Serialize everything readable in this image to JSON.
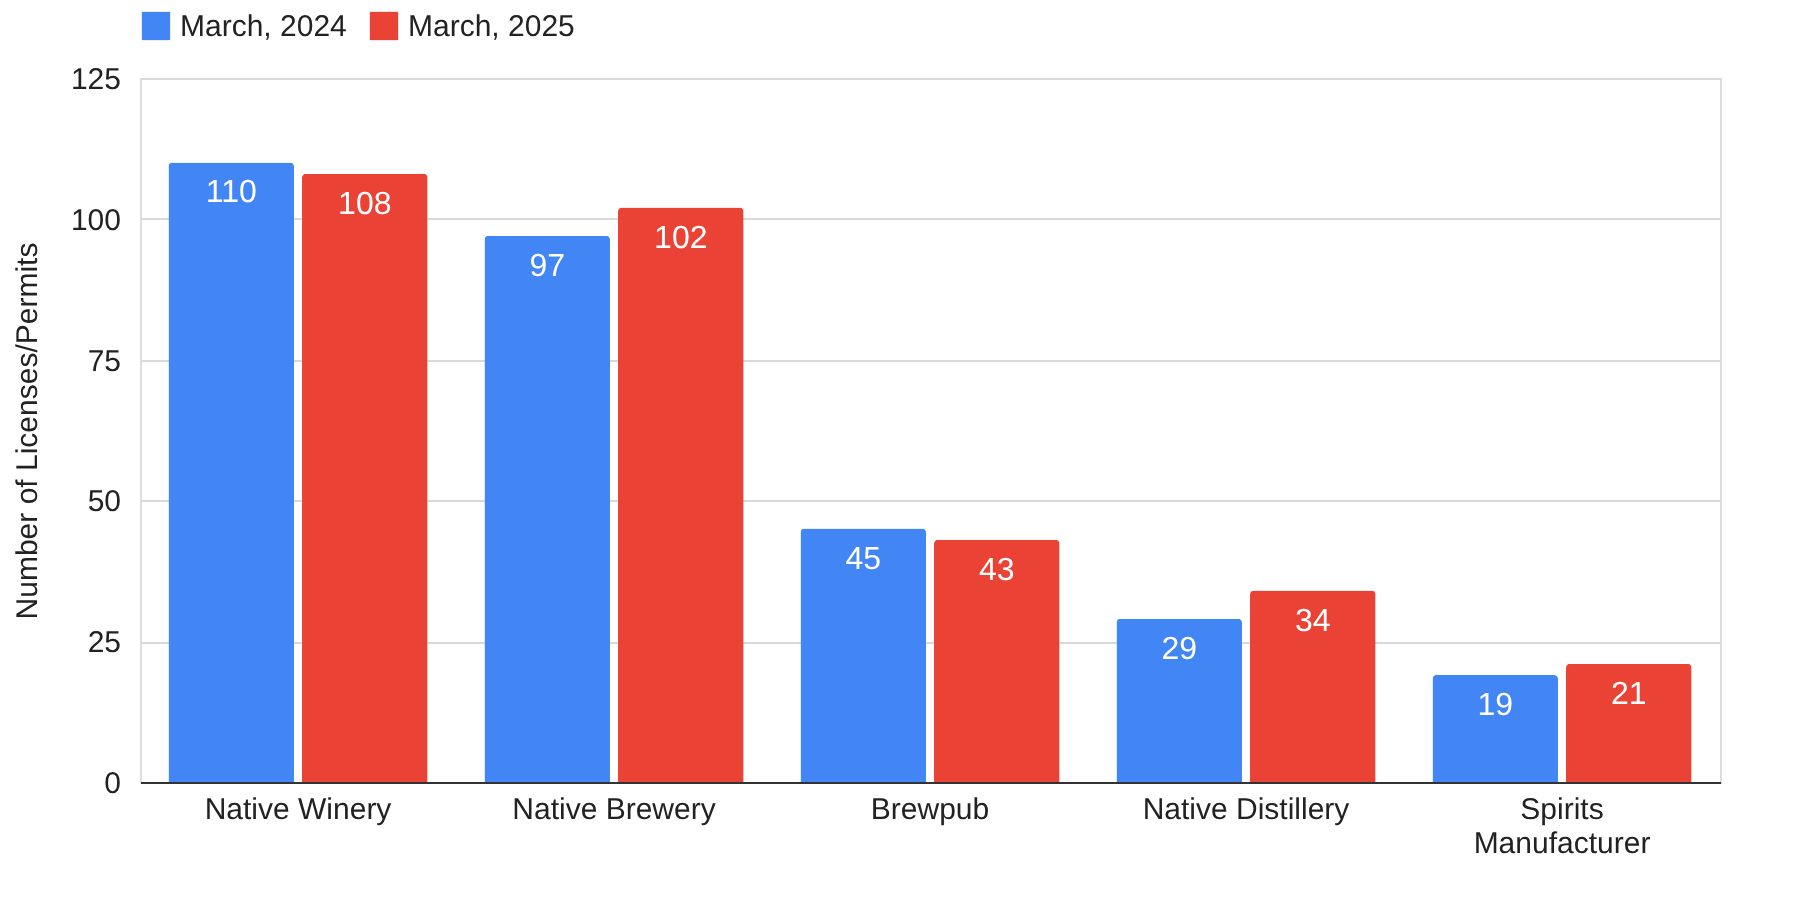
{
  "chart_data": {
    "type": "bar",
    "ylabel": "Number of Licenses/Permits",
    "categories": [
      "Native Winery",
      "Native Brewery",
      "Brewpub",
      "Native Distillery",
      "Spirits Manufacturer"
    ],
    "series": [
      {
        "name": "March, 2024",
        "color": "#4285f4",
        "values": [
          110,
          97,
          45,
          29,
          19
        ]
      },
      {
        "name": "March, 2025",
        "color": "#ea4335",
        "values": [
          108,
          102,
          43,
          34,
          21
        ]
      }
    ],
    "ylim": [
      0,
      125
    ],
    "yticks": [
      0,
      25,
      50,
      75,
      100,
      125
    ],
    "grid": "y",
    "legend": "top",
    "data_labels": true
  }
}
